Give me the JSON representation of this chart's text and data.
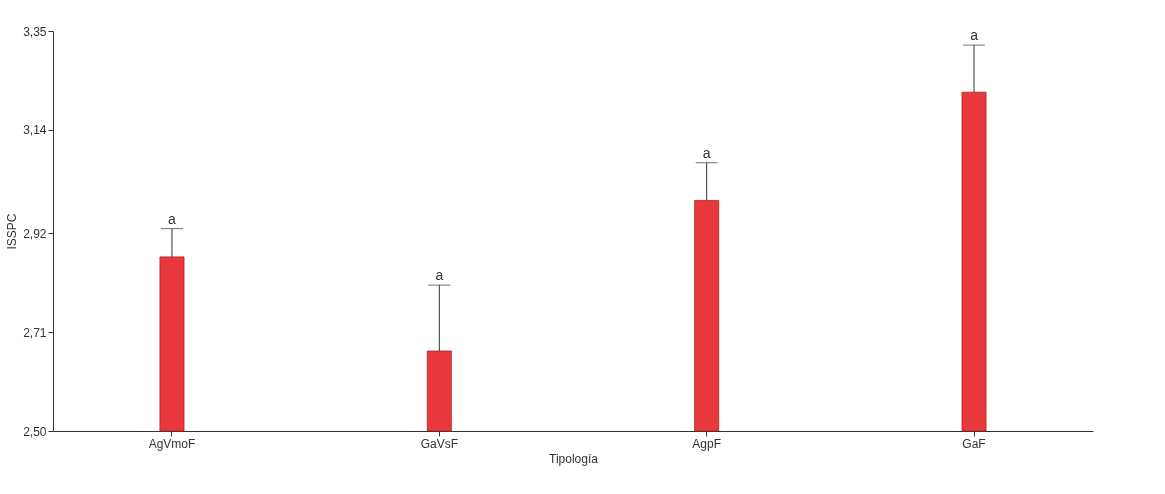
{
  "chart_data": {
    "type": "bar",
    "xlabel": "Tipología",
    "ylabel": "ISSPC",
    "categories": [
      "AgVmoF",
      "GaVsF",
      "AgpF",
      "GaF"
    ],
    "values": [
      2.87,
      2.67,
      2.99,
      3.22
    ],
    "errors": [
      [
        2.87,
        2.93
      ],
      [
        2.67,
        2.81
      ],
      [
        2.99,
        3.07
      ],
      [
        3.22,
        3.32
      ]
    ],
    "color": "#e8383b",
    "ylim": [
      2.5,
      3.35
    ],
    "yticks": [
      {
        "value": 2.5,
        "label": "2,50"
      },
      {
        "value": 2.71,
        "label": "2,71"
      },
      {
        "value": 2.92,
        "label": "2,92"
      },
      {
        "value": 3.14,
        "label": "3,14"
      },
      {
        "value": 3.35,
        "label": "3,35"
      }
    ],
    "grid": false,
    "annotations": [
      {
        "text": "a",
        "x": "AgVmoF",
        "y": 2.93
      },
      {
        "text": "a",
        "x": "GaVsF",
        "y": 2.81
      },
      {
        "text": "a",
        "x": "AgpF",
        "y": 3.07
      },
      {
        "text": "a",
        "x": "GaF",
        "y": 3.32
      }
    ]
  }
}
